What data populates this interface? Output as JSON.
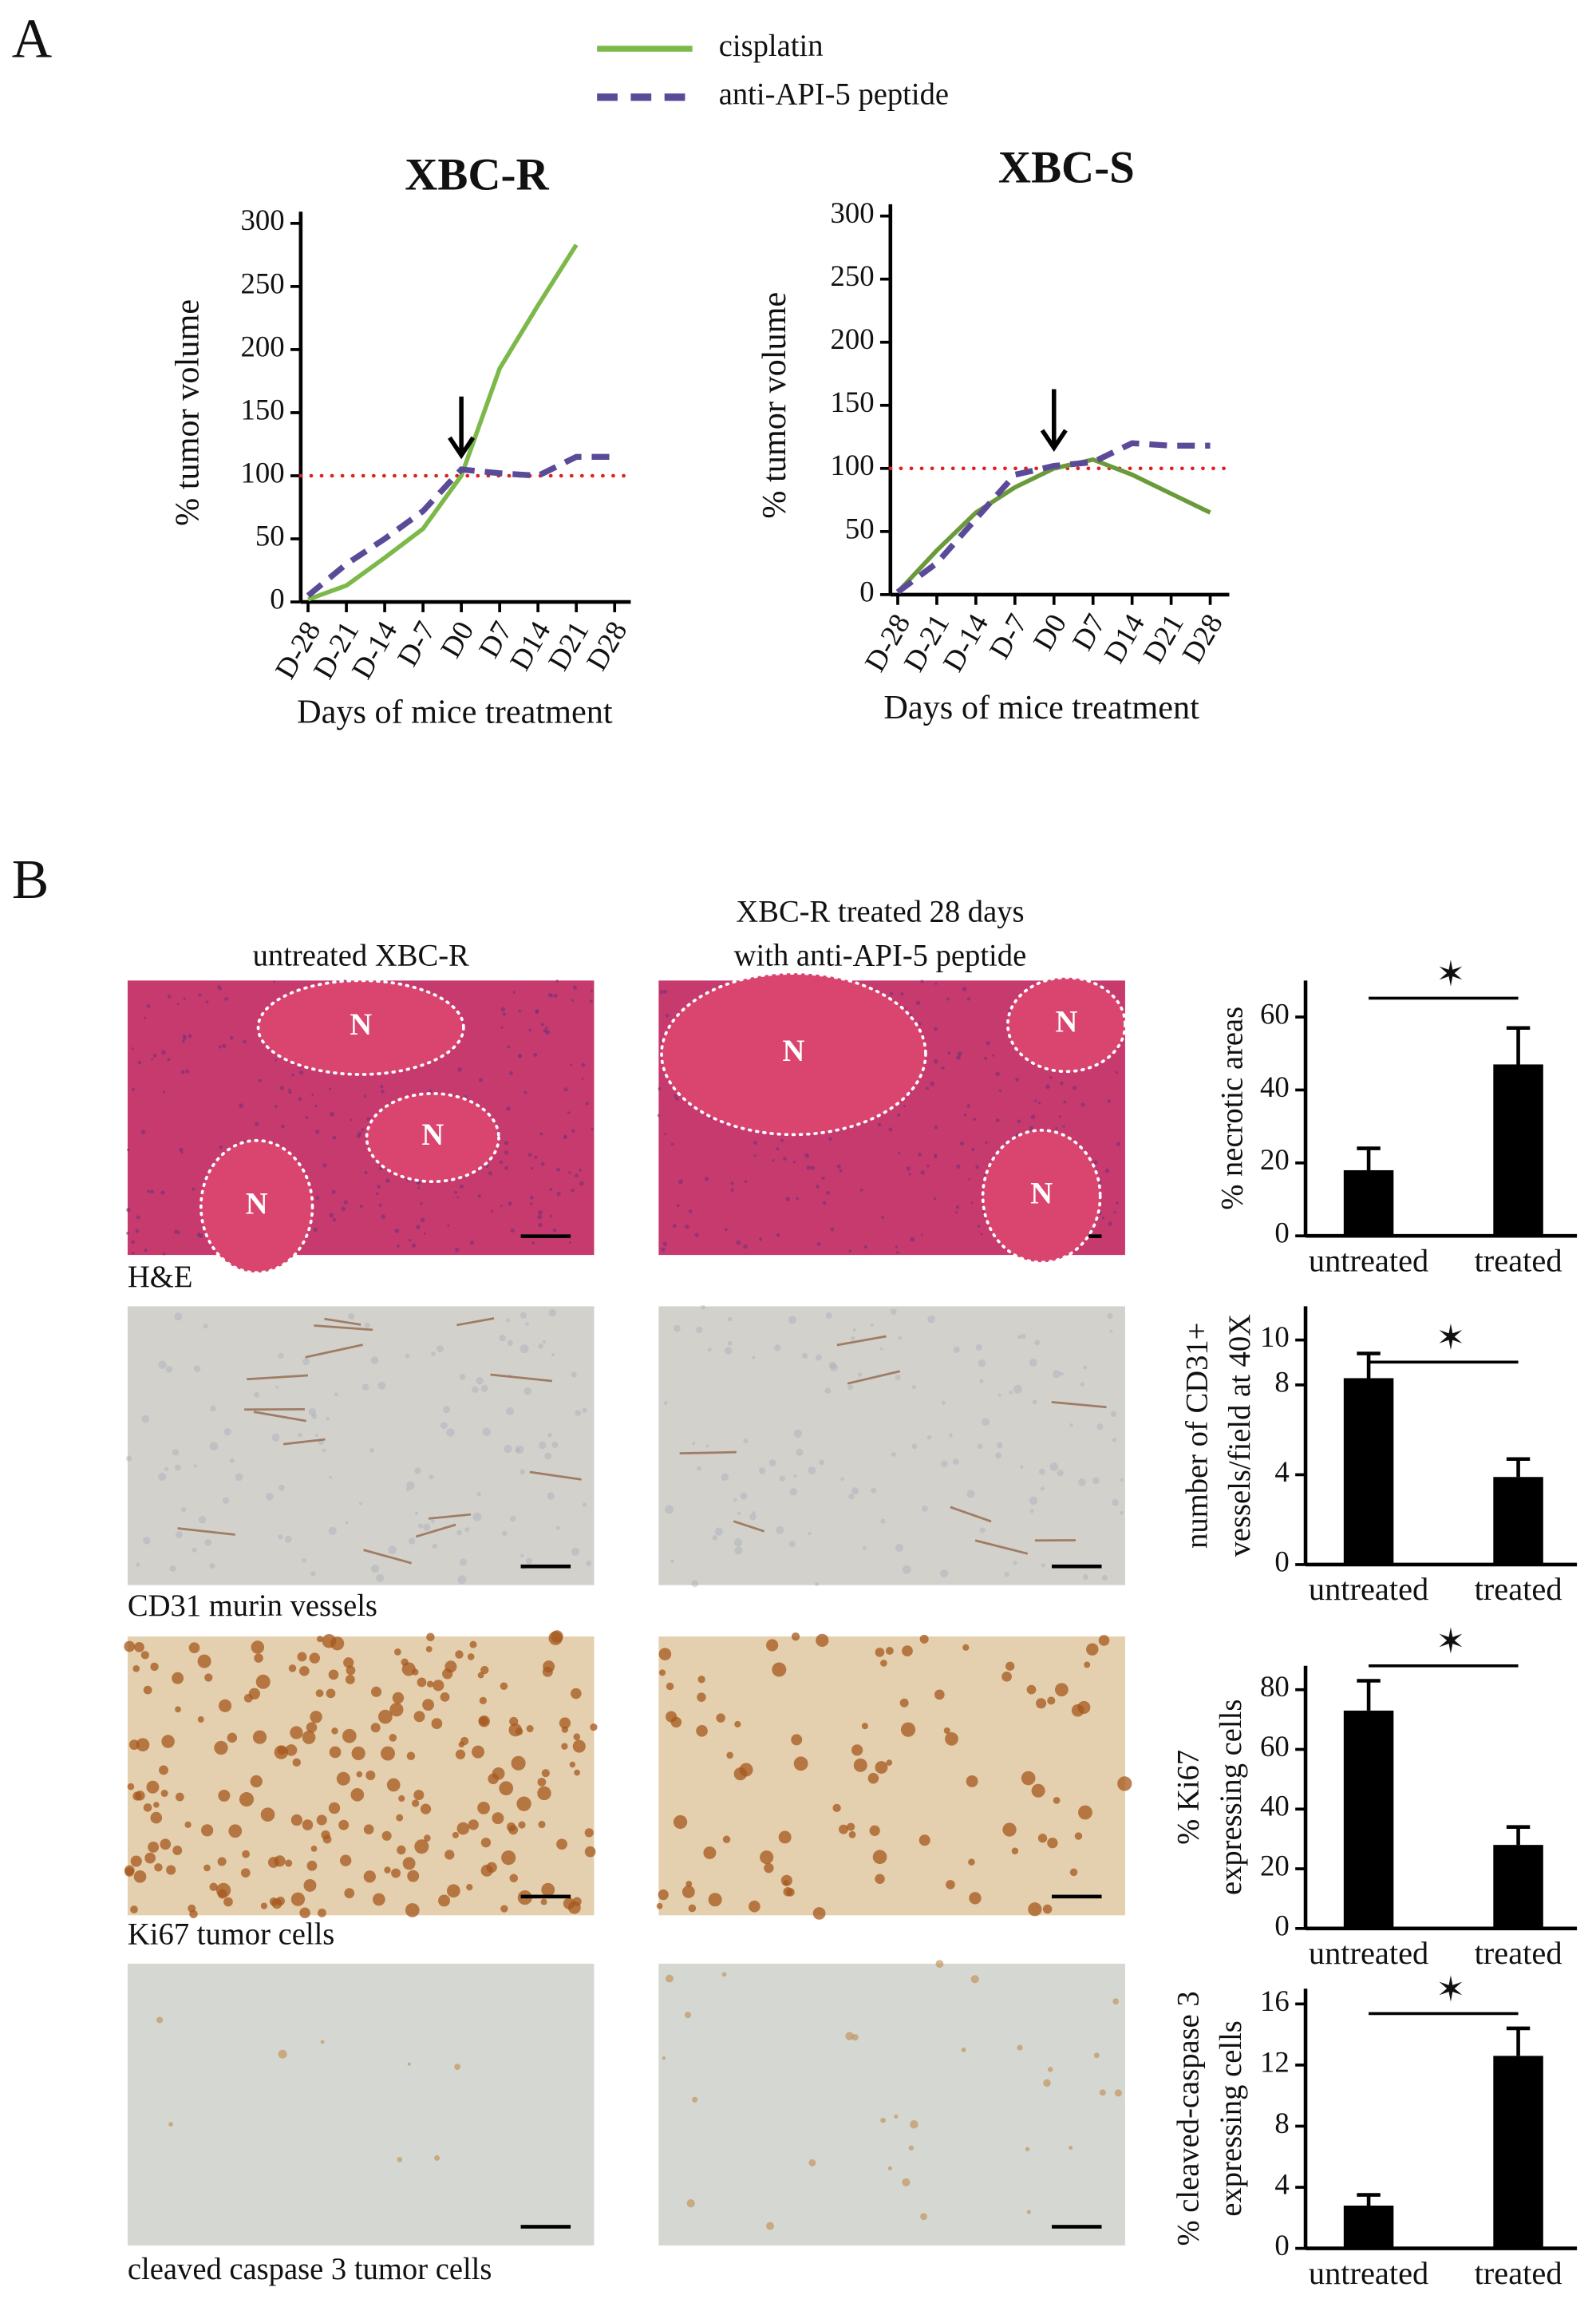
{
  "panel_labels": [
    "A",
    "B"
  ],
  "image_columns": {
    "untreated": "untreated XBC-R",
    "treated": [
      "XBC-R treated 28 days",
      "with anti-API-5 peptide"
    ]
  },
  "image_rows": [
    "H&E",
    "CD31 murin vessels",
    "Ki67 tumor cells",
    "cleaved caspase 3 tumor cells"
  ],
  "necrosis_marker": "N",
  "chart_data": [
    {
      "type": "line",
      "title": "XBC-R",
      "ylabel": "% tumor volume",
      "xlabel": "Days of mice treatment",
      "categories": [
        "D-28",
        "D-21",
        "D-14",
        "D-7",
        "D0",
        "D7",
        "D14",
        "D21",
        "D28"
      ],
      "series": [
        {
          "name": "cisplatin",
          "color": "#7cb94a",
          "dash": false,
          "values": [
            2,
            13,
            35,
            58,
            100,
            185,
            235,
            283,
            null
          ]
        },
        {
          "name": "anti-API-5 peptide",
          "color": "#5a4a98",
          "dash": true,
          "values": [
            5,
            30,
            50,
            72,
            105,
            102,
            100,
            115,
            115
          ]
        }
      ],
      "ylim": [
        0,
        300
      ],
      "yticks": [
        0,
        50,
        100,
        150,
        200,
        250,
        300
      ],
      "hline": {
        "value": 100,
        "color": "#e0201c"
      },
      "legend": true
    },
    {
      "type": "line",
      "title": "XBC-S",
      "ylabel": "% tumor volume",
      "xlabel": "Days of mice treatment",
      "categories": [
        "D-28",
        "D-21",
        "D-14",
        "D-7",
        "D0",
        "D7",
        "D14",
        "D21",
        "D28"
      ],
      "series": [
        {
          "name": "cisplatin",
          "color": "#6a9a3a",
          "dash": false,
          "values": [
            2,
            35,
            65,
            85,
            100,
            107,
            95,
            80,
            65
          ]
        },
        {
          "name": "anti-API-5 peptide",
          "color": "#5a4a98",
          "dash": true,
          "values": [
            2,
            25,
            60,
            95,
            102,
            105,
            120,
            118,
            118
          ]
        }
      ],
      "ylim": [
        0,
        300
      ],
      "yticks": [
        0,
        50,
        100,
        150,
        200,
        250,
        300
      ],
      "hline": {
        "value": 100,
        "color": "#e0201c"
      },
      "legend": false
    },
    {
      "type": "bar",
      "ylabel": [
        "% necrotic areas"
      ],
      "categories": [
        "untreated",
        "treated"
      ],
      "values": [
        18,
        47
      ],
      "errors": [
        6,
        10
      ],
      "color": "#000000",
      "ylim": [
        0,
        70
      ],
      "yticks": [
        0,
        20,
        40,
        60
      ],
      "significance": "✶"
    },
    {
      "type": "bar",
      "ylabel": [
        "number of CD31+",
        "vessels/field at 40X"
      ],
      "categories": [
        "untreated",
        "treated"
      ],
      "values": [
        8.3,
        3.9
      ],
      "errors": [
        1.1,
        0.8
      ],
      "color": "#000000",
      "ylim": [
        0,
        11.5
      ],
      "yticks": [
        0,
        4,
        8,
        10
      ],
      "significance": "✶"
    },
    {
      "type": "bar",
      "ylabel": [
        "% Ki67",
        "expressing cells"
      ],
      "categories": [
        "untreated",
        "treated"
      ],
      "values": [
        73,
        28
      ],
      "errors": [
        10,
        6
      ],
      "color": "#000000",
      "ylim": [
        0,
        88
      ],
      "yticks": [
        0,
        20,
        40,
        60,
        80
      ],
      "significance": "✶"
    },
    {
      "type": "bar",
      "ylabel": [
        "% cleaved-caspase 3",
        "expressing cells"
      ],
      "categories": [
        "untreated",
        "treated"
      ],
      "values": [
        2.8,
        12.6
      ],
      "errors": [
        0.7,
        1.8
      ],
      "color": "#000000",
      "ylim": [
        0,
        17
      ],
      "yticks": [
        0,
        4,
        8,
        12,
        16
      ],
      "significance": "✶"
    }
  ]
}
